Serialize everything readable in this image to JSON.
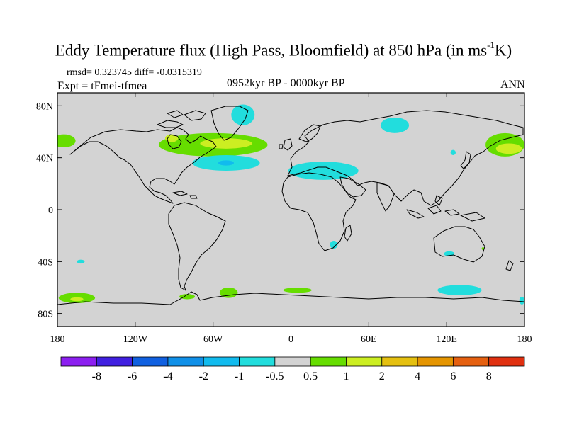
{
  "title": {
    "main": "Eddy Temperature flux (High Pass, Bloomfield) at 850 hPa (in ms",
    "unit_sup": "-1",
    "unit_end": "K)"
  },
  "stats": "rmsd= 0.323745 diff= -0.0315319",
  "expt": "Expt = tFmei-tfmea",
  "period": "0952kyr BP - 0000kyr BP",
  "season": "ANN",
  "map": {
    "lon_range": [
      -180,
      180
    ],
    "lat_range": [
      -90,
      90
    ],
    "background_color": "#d3d3d3",
    "x_ticks": [
      {
        "lon": -180,
        "label": "180"
      },
      {
        "lon": -120,
        "label": "120W"
      },
      {
        "lon": -60,
        "label": "60W"
      },
      {
        "lon": 0,
        "label": "0"
      },
      {
        "lon": 60,
        "label": "60E"
      },
      {
        "lon": 120,
        "label": "120E"
      },
      {
        "lon": 180,
        "label": "180"
      }
    ],
    "y_ticks": [
      {
        "lat": 80,
        "label": "80N"
      },
      {
        "lat": 40,
        "label": "40N"
      },
      {
        "lat": 0,
        "label": "0"
      },
      {
        "lat": -40,
        "label": "40S"
      },
      {
        "lat": -80,
        "label": "80S"
      }
    ],
    "anomaly_regions": [
      {
        "name": "north-pacific-east-positive",
        "level": "0.5 to 1",
        "color": "#66dd00",
        "lon": -175,
        "lat": 53,
        "rx_deg": 9,
        "ry_deg": 5
      },
      {
        "name": "north-america-positive",
        "level": "0.5 to 1",
        "color": "#66dd00",
        "lon": -60,
        "lat": 50,
        "rx_deg": 42,
        "ry_deg": 9
      },
      {
        "name": "north-atlantic-positive-core",
        "level": "1 to 2",
        "color": "#ccee22",
        "lon": -50,
        "lat": 51,
        "rx_deg": 20,
        "ry_deg": 4
      },
      {
        "name": "west-atlantic-positive-core",
        "level": "1 to 2",
        "color": "#ccee22",
        "lon": -92,
        "lat": 55,
        "rx_deg": 5,
        "ry_deg": 3
      },
      {
        "name": "greenland-negative",
        "level": "-1 to -0.5",
        "color": "#22dddd",
        "lon": -37,
        "lat": 73,
        "rx_deg": 9,
        "ry_deg": 8
      },
      {
        "name": "atlantic-negative",
        "level": "-1 to -0.5",
        "color": "#22dddd",
        "lon": -50,
        "lat": 36,
        "rx_deg": 26,
        "ry_deg": 6
      },
      {
        "name": "atlantic-negative-core",
        "level": "-2 to -1",
        "color": "#11bbee",
        "lon": -50,
        "lat": 36,
        "rx_deg": 6,
        "ry_deg": 2
      },
      {
        "name": "mediterranean-negative",
        "level": "-1 to -0.5",
        "color": "#22dddd",
        "lon": 25,
        "lat": 30,
        "rx_deg": 27,
        "ry_deg": 7
      },
      {
        "name": "siberia-negative",
        "level": "-1 to -0.5",
        "color": "#22dddd",
        "lon": 80,
        "lat": 65,
        "rx_deg": 11,
        "ry_deg": 6
      },
      {
        "name": "north-pacific-west-positive",
        "level": "0.5 to 1",
        "color": "#66dd00",
        "lon": 165,
        "lat": 50,
        "rx_deg": 15,
        "ry_deg": 9
      },
      {
        "name": "north-pacific-west-positive-core",
        "level": "1 to 2",
        "color": "#ccee22",
        "lon": 168,
        "lat": 47,
        "rx_deg": 10,
        "ry_deg": 4
      },
      {
        "name": "japan-negative",
        "level": "-1 to -0.5",
        "color": "#22dddd",
        "lon": 125,
        "lat": 44,
        "rx_deg": 2,
        "ry_deg": 2
      },
      {
        "name": "south-africa-negative",
        "level": "-1 to -0.5",
        "color": "#22dddd",
        "lon": 33,
        "lat": -27,
        "rx_deg": 3,
        "ry_deg": 3
      },
      {
        "name": "australia-negative",
        "level": "-1 to -0.5",
        "color": "#22dddd",
        "lon": 122,
        "lat": -34,
        "rx_deg": 4,
        "ry_deg": 2
      },
      {
        "name": "tasman-positive",
        "level": "0.5 to 1",
        "color": "#66dd00",
        "lon": 148,
        "lat": -30,
        "rx_deg": 1,
        "ry_deg": 1
      },
      {
        "name": "south-pacific-negative",
        "level": "-1 to -0.5",
        "color": "#22dddd",
        "lon": -162,
        "lat": -40,
        "rx_deg": 3,
        "ry_deg": 1.5
      },
      {
        "name": "southern-ocean-pacific-positive",
        "level": "0.5 to 1",
        "color": "#66dd00",
        "lon": -165,
        "lat": -68,
        "rx_deg": 14,
        "ry_deg": 4
      },
      {
        "name": "southern-ocean-pacific-positive-core",
        "level": "1 to 2",
        "color": "#ccee22",
        "lon": -165,
        "lat": -69,
        "rx_deg": 5,
        "ry_deg": 1.5
      },
      {
        "name": "southern-ocean-atlantic-positive",
        "level": "0.5 to 1",
        "color": "#66dd00",
        "lon": -48,
        "lat": -64,
        "rx_deg": 7,
        "ry_deg": 4
      },
      {
        "name": "weddell-positive",
        "level": "0.5 to 1",
        "color": "#66dd00",
        "lon": -80,
        "lat": -67,
        "rx_deg": 6,
        "ry_deg": 2
      },
      {
        "name": "southern-ocean-indian-positive",
        "level": "0.5 to 1",
        "color": "#66dd00",
        "lon": 5,
        "lat": -62,
        "rx_deg": 11,
        "ry_deg": 2
      },
      {
        "name": "southern-ocean-east-negative",
        "level": "-1 to -0.5",
        "color": "#22dddd",
        "lon": 130,
        "lat": -62,
        "rx_deg": 17,
        "ry_deg": 4
      },
      {
        "name": "ross-sea-negative",
        "level": "-1 to -0.5",
        "color": "#22dddd",
        "lon": 178,
        "lat": -70,
        "rx_deg": 2,
        "ry_deg": 3
      }
    ]
  },
  "colorbar": {
    "boxes": [
      {
        "color": "#8c1ff0"
      },
      {
        "color": "#4020e0"
      },
      {
        "color": "#1060e0"
      },
      {
        "color": "#1090e8"
      },
      {
        "color": "#11bbee"
      },
      {
        "color": "#22dddd"
      },
      {
        "color": "#d3d3d3"
      },
      {
        "color": "#66dd00"
      },
      {
        "color": "#ccee22"
      },
      {
        "color": "#e5c010"
      },
      {
        "color": "#e59500"
      },
      {
        "color": "#e56010"
      },
      {
        "color": "#e03010"
      }
    ],
    "labels": [
      "-8",
      "-6",
      "-4",
      "-2",
      "-1",
      "-0.5",
      "0.5",
      "1",
      "2",
      "4",
      "6",
      "8"
    ]
  }
}
